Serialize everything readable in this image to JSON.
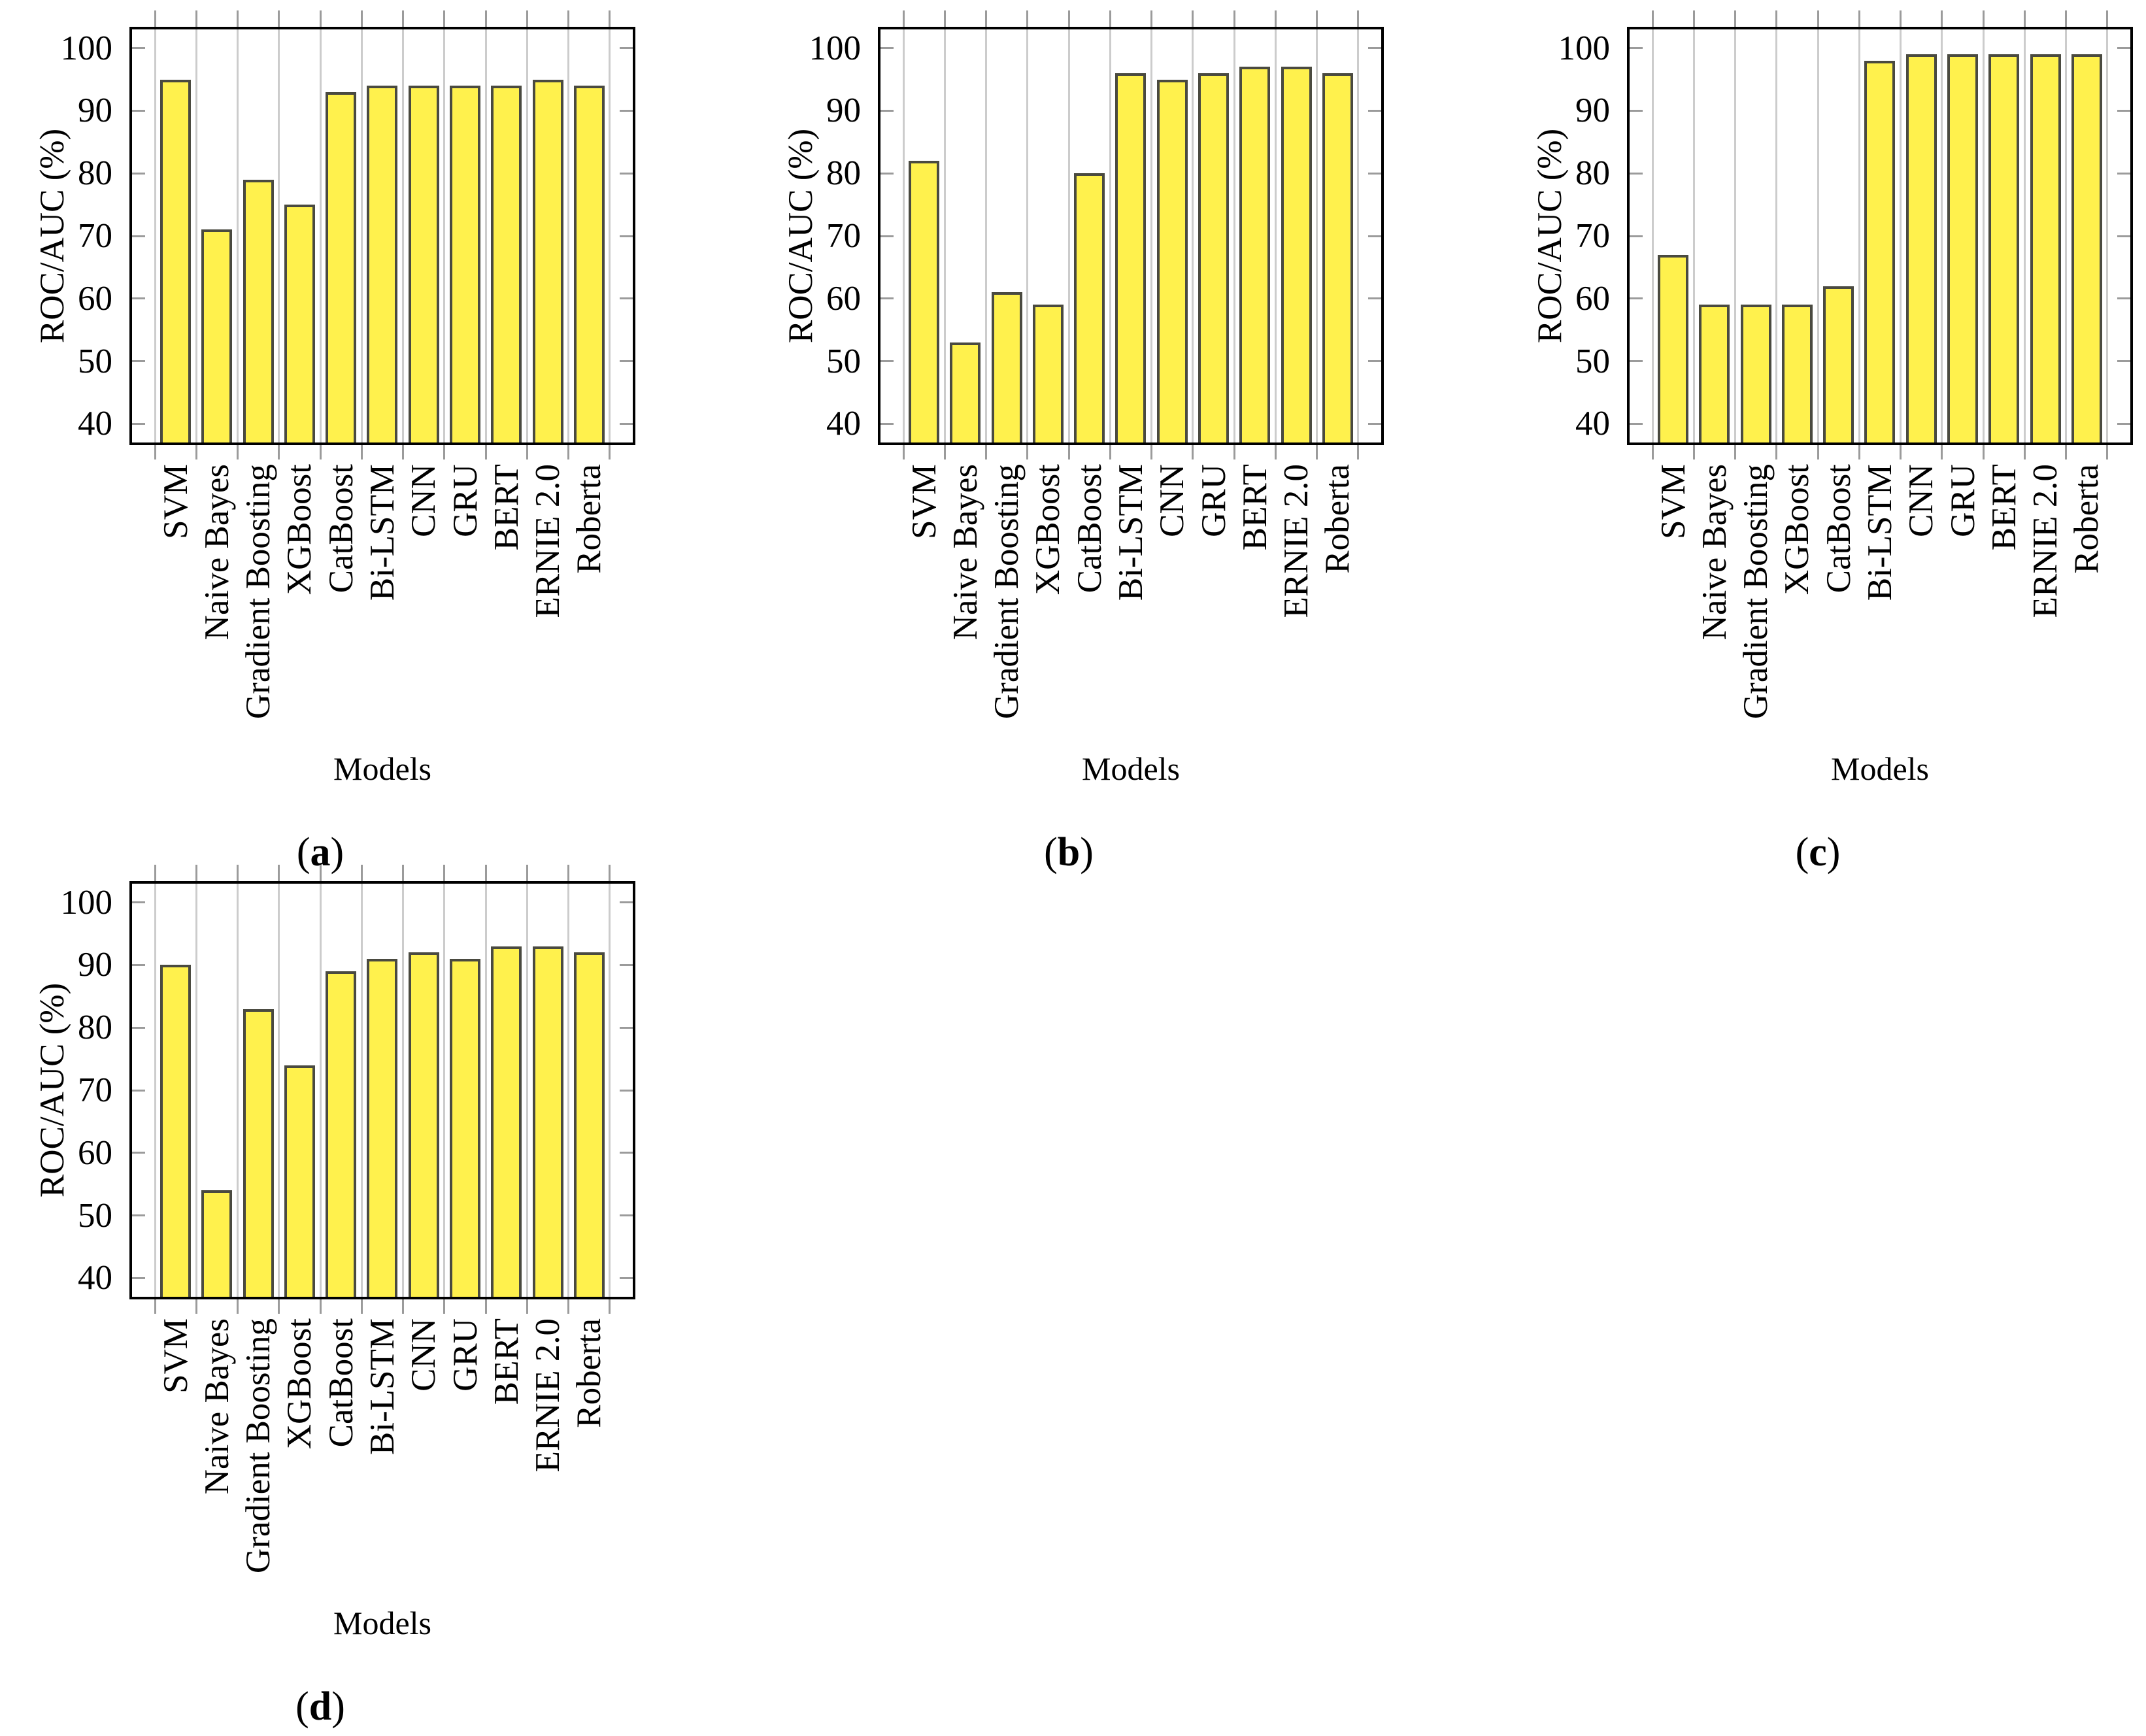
{
  "figure": {
    "ylabel": "ROC/AUC (%)",
    "xlabel": "Models",
    "yticks_display": [
      100,
      90,
      80,
      70,
      60,
      50,
      40
    ],
    "categories": [
      "SVM",
      "Naive Bayes",
      "Gradient Boosting",
      "XGBoost",
      "CatBoost",
      "Bi-LSTM",
      "CNN",
      "GRU",
      "BERT",
      "ERNIE 2.0",
      "Roberta"
    ],
    "colors": {
      "bar_fill": "#FFF14D",
      "bar_border": "#4A4A40",
      "grid_line": "#CCCCCC",
      "tick": "#9B9B9B",
      "frame": "#000000",
      "text": "#000000"
    }
  },
  "chart_data": [
    {
      "type": "bar",
      "label": "a",
      "title": "(a)",
      "xlabel": "Models",
      "ylabel": "ROC/AUC (%)",
      "ylim": [
        37,
        103
      ],
      "yticks": [
        40,
        50,
        60,
        70,
        80,
        90,
        100
      ],
      "grid": "vertical-category-boundaries",
      "categories": [
        "SVM",
        "Naive Bayes",
        "Gradient Boosting",
        "XGBoost",
        "CatBoost",
        "Bi-LSTM",
        "CNN",
        "GRU",
        "BERT",
        "ERNIE 2.0",
        "Roberta"
      ],
      "values": [
        95,
        71,
        79,
        75,
        93,
        94,
        94,
        94,
        94,
        95,
        94
      ]
    },
    {
      "type": "bar",
      "label": "b",
      "title": "(b)",
      "xlabel": "Models",
      "ylabel": "ROC/AUC (%)",
      "ylim": [
        37,
        103
      ],
      "yticks": [
        40,
        50,
        60,
        70,
        80,
        90,
        100
      ],
      "grid": "vertical-category-boundaries",
      "categories": [
        "SVM",
        "Naive Bayes",
        "Gradient Boosting",
        "XGBoost",
        "CatBoost",
        "Bi-LSTM",
        "CNN",
        "GRU",
        "BERT",
        "ERNIE 2.0",
        "Roberta"
      ],
      "values": [
        82,
        53,
        61,
        59,
        80,
        96,
        95,
        96,
        97,
        97,
        96
      ]
    },
    {
      "type": "bar",
      "label": "c",
      "title": "(c)",
      "xlabel": "Models",
      "ylabel": "ROC/AUC (%)",
      "ylim": [
        37,
        103
      ],
      "yticks": [
        40,
        50,
        60,
        70,
        80,
        90,
        100
      ],
      "grid": "vertical-category-boundaries",
      "categories": [
        "SVM",
        "Naive Bayes",
        "Gradient Boosting",
        "XGBoost",
        "CatBoost",
        "Bi-LSTM",
        "CNN",
        "GRU",
        "BERT",
        "ERNIE 2.0",
        "Roberta"
      ],
      "values": [
        67,
        59,
        59,
        59,
        62,
        98,
        99,
        99,
        99,
        99,
        99
      ]
    },
    {
      "type": "bar",
      "label": "d",
      "title": "(d)",
      "xlabel": "Models",
      "ylabel": "ROC/AUC (%)",
      "ylim": [
        37,
        103
      ],
      "yticks": [
        40,
        50,
        60,
        70,
        80,
        90,
        100
      ],
      "grid": "vertical-category-boundaries",
      "categories": [
        "SVM",
        "Naive Bayes",
        "Gradient Boosting",
        "XGBoost",
        "CatBoost",
        "Bi-LSTM",
        "CNN",
        "GRU",
        "BERT",
        "ERNIE 2.0",
        "Roberta"
      ],
      "values": [
        90,
        54,
        83,
        74,
        89,
        91,
        92,
        91,
        93,
        93,
        92
      ]
    }
  ]
}
